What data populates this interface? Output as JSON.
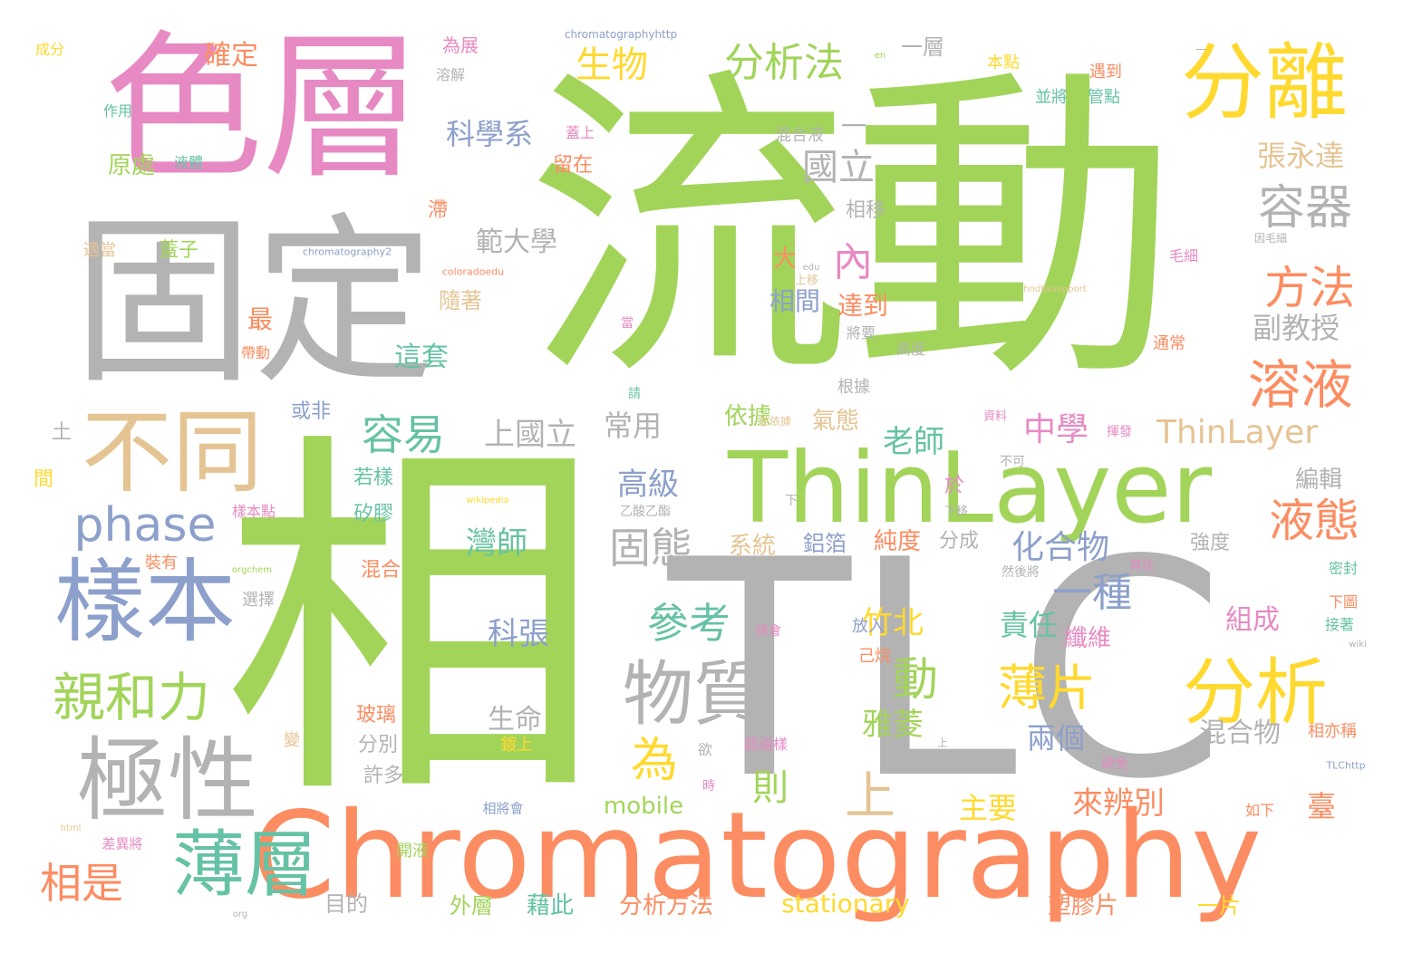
{
  "palette": {
    "green": "#a2d45a",
    "gray": "#b3b3b3",
    "pink": "#e78ac3",
    "orange": "#fc8d62",
    "yellow": "#ffd92f",
    "tan": "#e5c494",
    "blue": "#8da0cb",
    "teal": "#66c2a5"
  },
  "words": [
    "流動",
    "相",
    "TLC",
    "色層",
    "固定",
    "Chromatography",
    "分離",
    "ThinLayer",
    "不同",
    "樣本",
    "極性",
    "薄層",
    "分析",
    "物質",
    "親和力",
    "phase",
    "溶液",
    "方法",
    "液態",
    "容器",
    "分析法",
    "生物",
    "確定",
    "薄片",
    "容易",
    "固態",
    "國立",
    "科學系",
    "參考",
    "上",
    "動",
    "一種",
    "老師",
    "為",
    "高級",
    "灣師",
    "科張",
    "生命",
    "則",
    "相是",
    "範大學",
    "張永達",
    "副教授",
    "內",
    "中學",
    "化合物",
    "上國立",
    "常用",
    "依據",
    "氣態",
    "ThinLayer",
    "竹北",
    "雅菱",
    "責任",
    "組成",
    "纖維",
    "兩個",
    "混合物",
    "來辨別",
    "主要",
    "臺",
    "mobile",
    "stationary",
    "分析方法",
    "塑膠片",
    "一片",
    "藉此",
    "外層",
    "目的",
    "相將會",
    "差異將",
    "開液",
    "相亦稱",
    "如下",
    "接著",
    "密封",
    "其往",
    "強度",
    "編輯",
    "然後將",
    "不可",
    "資料",
    "揮發",
    "並依據",
    "將會",
    "放入",
    "己烷",
    "鋁箔",
    "純度",
    "分成",
    "系統",
    "乙酸乙酯",
    "矽膠",
    "若樣",
    "於",
    "下移",
    "上移",
    "根據",
    "將要",
    "高度",
    "通常",
    "毛細",
    "因毛細",
    "相移",
    "混合液",
    "一層",
    "本點",
    "遇到",
    "並將",
    "管點",
    "為展",
    "溶解",
    "蓋上",
    "留在",
    "滯",
    "隨著",
    "這套",
    "或非",
    "土",
    "間",
    "樣本點",
    "裝有",
    "混合",
    "選擇",
    "變",
    "分別",
    "許多",
    "超過樣",
    "鍍上",
    "欲",
    "時",
    "避免",
    "玻璃",
    "最",
    "帶動",
    "大",
    "相間",
    "達到",
    "適當",
    "蓋子",
    "原處",
    "液體",
    "作用",
    "成分",
    "一",
    "當",
    "請",
    "下圖",
    "下",
    "chromatographyhttp",
    "chromatography2",
    "coloradoedu",
    "hndbksupport",
    "wikipedia",
    "orgchem",
    "wiki",
    "TLChttp",
    "html",
    "org",
    "en",
    "edu",
    "一",
    "上"
  ]
}
